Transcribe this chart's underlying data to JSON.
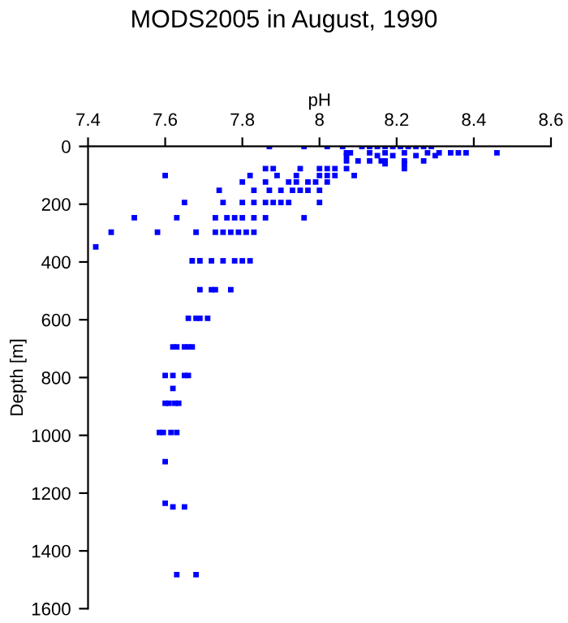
{
  "chart_data": {
    "type": "scatter",
    "title": "MODS2005 in August, 1990",
    "xlabel": "pH",
    "ylabel": "Depth [m]",
    "xlim": [
      7.4,
      8.6
    ],
    "xticks": [
      7.4,
      7.6,
      7.8,
      8,
      8.2,
      8.4,
      8.6
    ],
    "ylim": [
      1600,
      0
    ],
    "yticks": [
      0,
      200,
      400,
      600,
      800,
      1000,
      1200,
      1400,
      1600
    ],
    "grid": false,
    "marker": "square",
    "tick_labels": "xy",
    "series": [
      {
        "color": "#0000ff",
        "x": [
          7.87,
          7.96,
          8.02,
          8.06,
          8.11,
          8.13,
          8.15,
          8.17,
          8.19,
          8.21,
          8.23,
          8.25,
          8.27,
          8.29,
          8.07,
          8.08,
          8.13,
          8.17,
          8.22,
          8.28,
          8.31,
          8.34,
          8.36,
          8.38,
          8.46,
          8.07,
          8.15,
          8.19,
          8.25,
          8.3,
          8.07,
          8.1,
          8.13,
          8.16,
          8.17,
          8.22,
          8.27,
          8.17,
          8.22,
          7.86,
          7.88,
          7.95,
          8.0,
          8.02,
          8.04,
          8.07,
          8.22,
          7.6,
          7.82,
          7.89,
          7.94,
          8.0,
          8.02,
          8.04,
          8.09,
          7.8,
          7.86,
          7.92,
          7.94,
          7.97,
          7.99,
          8.02,
          7.74,
          7.83,
          7.87,
          7.9,
          7.93,
          7.95,
          7.97,
          8.0,
          7.65,
          7.75,
          7.8,
          7.83,
          7.86,
          7.88,
          7.9,
          7.92,
          8.0,
          7.52,
          7.63,
          7.73,
          7.76,
          7.78,
          7.8,
          7.83,
          7.86,
          7.96,
          7.46,
          7.58,
          7.68,
          7.73,
          7.75,
          7.77,
          7.79,
          7.81,
          7.83,
          7.42,
          7.67,
          7.69,
          7.72,
          7.75,
          7.78,
          7.8,
          7.82,
          7.69,
          7.72,
          7.73,
          7.77,
          7.66,
          7.68,
          7.69,
          7.71,
          7.62,
          7.63,
          7.65,
          7.66,
          7.67,
          7.6,
          7.62,
          7.65,
          7.66,
          7.62,
          7.6,
          7.61,
          7.625,
          7.635,
          7.585,
          7.595,
          7.615,
          7.63,
          7.6,
          7.6,
          7.62,
          7.65,
          7.63,
          7.68
        ],
        "values": [
          0,
          0,
          0,
          0,
          0,
          0,
          0,
          0,
          0,
          0,
          0,
          0,
          0,
          0,
          22,
          22,
          22,
          22,
          22,
          22,
          22,
          22,
          22,
          22,
          22,
          32,
          32,
          32,
          32,
          32,
          50,
          50,
          50,
          50,
          50,
          50,
          50,
          60,
          60,
          77,
          77,
          77,
          77,
          77,
          77,
          77,
          77,
          101,
          101,
          101,
          101,
          101,
          101,
          101,
          101,
          123,
          123,
          123,
          123,
          123,
          123,
          123,
          152,
          152,
          152,
          152,
          152,
          152,
          152,
          152,
          194,
          194,
          194,
          194,
          194,
          194,
          194,
          194,
          194,
          247,
          247,
          247,
          247,
          247,
          247,
          247,
          247,
          247,
          297,
          297,
          297,
          297,
          297,
          297,
          297,
          297,
          297,
          348,
          396,
          396,
          396,
          396,
          396,
          396,
          396,
          496,
          496,
          496,
          496,
          595,
          595,
          595,
          595,
          694,
          694,
          694,
          694,
          694,
          793,
          793,
          793,
          793,
          838,
          889,
          889,
          889,
          889,
          990,
          990,
          990,
          990,
          1091,
          1235,
          1248,
          1248,
          1482,
          1482
        ]
      }
    ]
  }
}
